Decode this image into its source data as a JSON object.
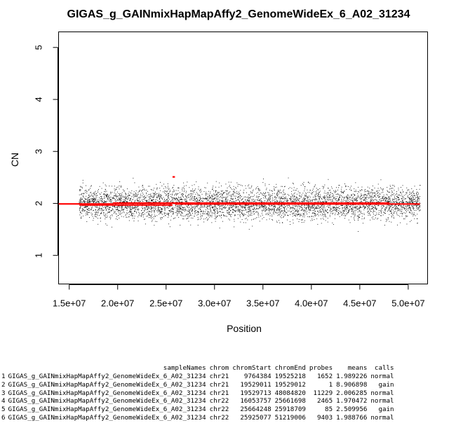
{
  "chart_data": {
    "type": "scatter",
    "title": "GIGAS_g_GAINmixHapMapAffy2_GenomeWideEx_6_A02_31234",
    "xlabel": "Position",
    "ylabel": "CN",
    "x_ticks": [
      15000000,
      20000000,
      25000000,
      30000000,
      35000000,
      40000000,
      45000000,
      50000000
    ],
    "x_tick_labels": [
      "1.5e+07",
      "2.0e+07",
      "2.5e+07",
      "3.0e+07",
      "3.5e+07",
      "4.0e+07",
      "4.5e+07",
      "5.0e+07"
    ],
    "y_ticks": [
      1,
      2,
      3,
      4,
      5
    ],
    "y_tick_labels": [
      "1",
      "2",
      "3",
      "4",
      "5"
    ],
    "xlim": [
      13900000,
      52000000
    ],
    "ylim": [
      0.45,
      5.3
    ],
    "grid": false,
    "point_color": "#000000",
    "segment_color": "#ff0000",
    "series": [
      {
        "type": "segments",
        "segments": [
          {
            "x0": 9764384,
            "x1": 19525218,
            "y": 1.989226
          },
          {
            "x0": 19529011,
            "x1": 19529012,
            "y": 8.906898
          },
          {
            "x0": 19529713,
            "x1": 48084820,
            "y": 2.006285
          },
          {
            "x0": 16053757,
            "x1": 25661698,
            "y": 1.970472
          },
          {
            "x0": 25664248,
            "x1": 25918709,
            "y": 2.509956
          },
          {
            "x0": 25925077,
            "x1": 51219006,
            "y": 1.988766
          }
        ]
      }
    ]
  },
  "table": {
    "headers": [
      "",
      "sampleNames",
      "chrom",
      "chromStart",
      "chromEnd",
      "probes",
      "means",
      "calls"
    ],
    "rows": [
      [
        "1",
        "GIGAS_g_GAINmixHapMapAffy2_GenomeWideEx_6_A02_31234",
        "chr21",
        "9764384",
        "19525218",
        "1652",
        "1.989226",
        "normal"
      ],
      [
        "2",
        "GIGAS_g_GAINmixHapMapAffy2_GenomeWideEx_6_A02_31234",
        "chr21",
        "19529011",
        "19529012",
        "1",
        "8.906898",
        "gain"
      ],
      [
        "3",
        "GIGAS_g_GAINmixHapMapAffy2_GenomeWideEx_6_A02_31234",
        "chr21",
        "19529713",
        "48084820",
        "11229",
        "2.006285",
        "normal"
      ],
      [
        "4",
        "GIGAS_g_GAINmixHapMapAffy2_GenomeWideEx_6_A02_31234",
        "chr22",
        "16053757",
        "25661698",
        "2465",
        "1.970472",
        "normal"
      ],
      [
        "5",
        "GIGAS_g_GAINmixHapMapAffy2_GenomeWideEx_6_A02_31234",
        "chr22",
        "25664248",
        "25918709",
        "85",
        "2.509956",
        "gain"
      ],
      [
        "6",
        "GIGAS_g_GAINmixHapMapAffy2_GenomeWideEx_6_A02_31234",
        "chr22",
        "25925077",
        "51219006",
        "9403",
        "1.988766",
        "normal"
      ]
    ]
  }
}
